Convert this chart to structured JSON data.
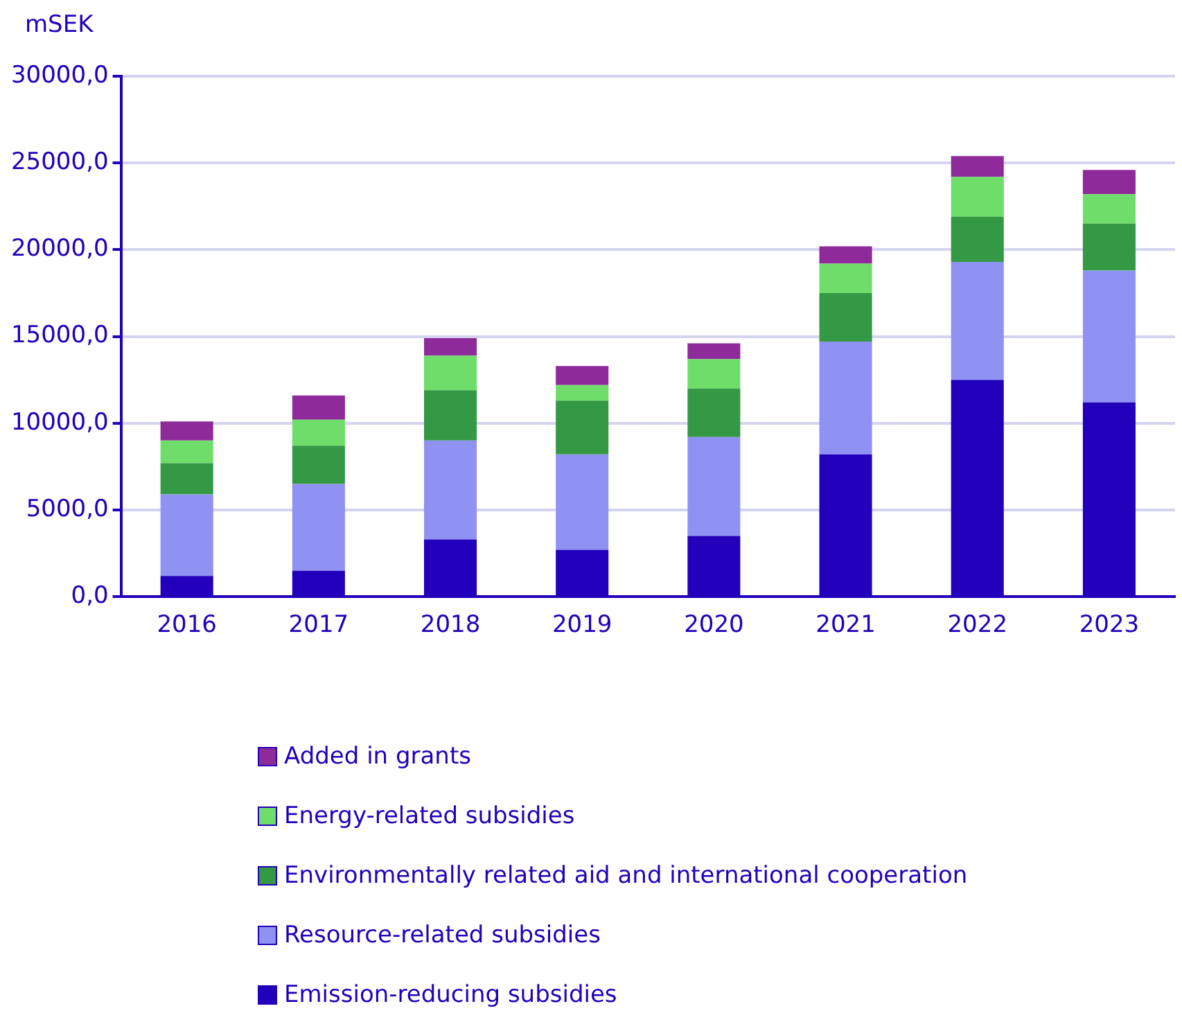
{
  "chart_data": {
    "type": "bar",
    "ylabel": "mSEK",
    "stacked": true,
    "grid": "y",
    "legend": "bottom",
    "categories": [
      "2016",
      "2017",
      "2018",
      "2019",
      "2020",
      "2021",
      "2022",
      "2023"
    ],
    "series": [
      {
        "name": "Emission-reducing subsidies",
        "color": "#2200bb",
        "values": [
          1200,
          1500,
          3300,
          2700,
          3500,
          8200,
          12500,
          11200
        ]
      },
      {
        "name": "Resource-related subsidies",
        "color": "#8f92f2",
        "values": [
          4700,
          5000,
          5700,
          5500,
          5700,
          6500,
          6800,
          7600
        ]
      },
      {
        "name": "Environmentally related aid and international cooperation",
        "color": "#339944",
        "values": [
          1800,
          2200,
          2900,
          3100,
          2800,
          2800,
          2600,
          2700
        ]
      },
      {
        "name": "Energy-related subsidies",
        "color": "#6fdd6a",
        "values": [
          1300,
          1500,
          2000,
          900,
          1700,
          1700,
          2300,
          1700
        ]
      },
      {
        "name": "Added in grants",
        "color": "#8e2a9a",
        "values": [
          1100,
          1400,
          1000,
          1100,
          900,
          1000,
          1200,
          1400
        ]
      }
    ],
    "ylim": [
      0,
      30000
    ],
    "yticks": [
      {
        "value": 0,
        "label": "0,0"
      },
      {
        "value": 5000,
        "label": "5000,0"
      },
      {
        "value": 10000,
        "label": "10000,0"
      },
      {
        "value": 15000,
        "label": "15000,0"
      },
      {
        "value": 20000,
        "label": "20000,0"
      },
      {
        "value": 25000,
        "label": "25000,0"
      },
      {
        "value": 30000,
        "label": "30000,0"
      }
    ]
  }
}
